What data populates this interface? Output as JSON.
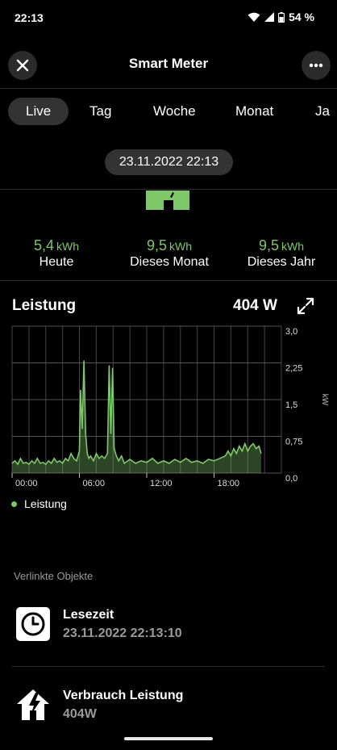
{
  "status": {
    "time": "22:13",
    "battery": "54 %"
  },
  "header": {
    "title": "Smart Meter"
  },
  "tabs": [
    "Live",
    "Tag",
    "Woche",
    "Monat",
    "Ja"
  ],
  "date": "23.11.2022 22:13",
  "stats": [
    {
      "value": "5,4",
      "unit": "kWh",
      "label": "Heute"
    },
    {
      "value": "9,5",
      "unit": "kWh",
      "label": "Dieses Monat"
    },
    {
      "value": "9,5",
      "unit": "kWh",
      "label": "Dieses Jahr"
    }
  ],
  "power": {
    "title": "Leistung",
    "value": "404 W"
  },
  "legend": {
    "label": "Leistung"
  },
  "colors": {
    "accent": "#7fc86a",
    "background": "#000000",
    "pill": "#333333"
  },
  "chart_data": {
    "type": "area",
    "ylabel": "kW",
    "ylim": [
      0,
      3
    ],
    "y_ticks": [
      "3,0",
      "2,25",
      "1,5",
      "0,75",
      "0,0"
    ],
    "x_ticks": [
      "00:00",
      "06:00",
      "12:00",
      "18:00"
    ],
    "xlim_hours": [
      0,
      24
    ],
    "grid": true,
    "series": [
      {
        "name": "Leistung",
        "x_hours": [
          0,
          0.25,
          0.5,
          0.75,
          1,
          1.25,
          1.5,
          1.75,
          2,
          2.25,
          2.5,
          2.75,
          3,
          3.25,
          3.5,
          3.75,
          4,
          4.25,
          4.5,
          4.75,
          5,
          5.25,
          5.5,
          5.75,
          6,
          6.1,
          6.25,
          6.4,
          6.55,
          6.7,
          6.85,
          7,
          7.25,
          7.5,
          7.75,
          8,
          8.25,
          8.5,
          8.65,
          8.8,
          8.95,
          9.1,
          9.3,
          9.5,
          9.75,
          10,
          10.5,
          11,
          11.5,
          12,
          12.5,
          13,
          13.5,
          14,
          14.5,
          15,
          15.5,
          16,
          16.5,
          17,
          17.5,
          18,
          18.5,
          19,
          19.25,
          19.5,
          19.75,
          20,
          20.25,
          20.5,
          20.75,
          21,
          21.25,
          21.5,
          21.75,
          22,
          22.2
        ],
        "values": [
          0.2,
          0.25,
          0.18,
          0.3,
          0.2,
          0.22,
          0.18,
          0.25,
          0.2,
          0.3,
          0.2,
          0.22,
          0.18,
          0.25,
          0.2,
          0.3,
          0.22,
          0.25,
          0.2,
          0.3,
          0.25,
          0.4,
          0.3,
          0.25,
          0.45,
          1.7,
          0.9,
          2.3,
          0.8,
          0.4,
          0.3,
          0.35,
          0.25,
          0.4,
          0.3,
          0.35,
          0.3,
          0.4,
          2.2,
          0.8,
          2.15,
          0.5,
          0.35,
          0.25,
          0.35,
          0.2,
          0.28,
          0.2,
          0.25,
          0.22,
          0.3,
          0.2,
          0.25,
          0.2,
          0.28,
          0.22,
          0.3,
          0.22,
          0.25,
          0.2,
          0.28,
          0.25,
          0.3,
          0.35,
          0.45,
          0.35,
          0.5,
          0.4,
          0.55,
          0.45,
          0.6,
          0.45,
          0.55,
          0.6,
          0.5,
          0.55,
          0.4
        ]
      }
    ]
  },
  "linked": {
    "label": "Verlinkte Objekte",
    "items": [
      {
        "title": "Lesezeit",
        "subtitle": "23.11.2022 22:13:10",
        "icon": "clock-icon"
      },
      {
        "title": "Verbrauch Leistung",
        "subtitle": "404W",
        "icon": "house-bolt-icon"
      }
    ]
  }
}
